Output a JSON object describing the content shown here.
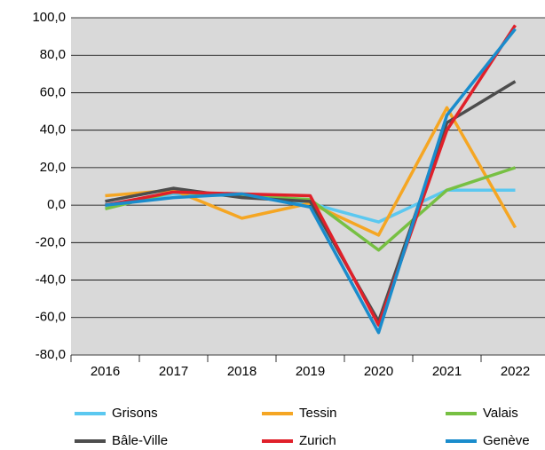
{
  "chart_data": {
    "type": "line",
    "categories": [
      "2016",
      "2017",
      "2018",
      "2019",
      "2020",
      "2021",
      "2022"
    ],
    "series": [
      {
        "name": "Grisons",
        "color": "#5bc8f0",
        "values": [
          -1,
          6,
          5,
          1,
          -9,
          8,
          8
        ]
      },
      {
        "name": "Tessin",
        "color": "#f5a623",
        "values": [
          5,
          8,
          -7,
          1,
          -16,
          52,
          -12
        ]
      },
      {
        "name": "Valais",
        "color": "#77c043",
        "values": [
          -2,
          7,
          5,
          3,
          -24,
          8,
          20
        ]
      },
      {
        "name": "Bâle-Ville",
        "color": "#4d4d4d",
        "values": [
          2,
          9,
          4,
          2,
          -62,
          44,
          66
        ]
      },
      {
        "name": "Zurich",
        "color": "#e0202a",
        "values": [
          0,
          7,
          6,
          5,
          -64,
          40,
          96
        ]
      },
      {
        "name": "Genève",
        "color": "#1a8ccc",
        "values": [
          0,
          4,
          6,
          -1,
          -68,
          48,
          94
        ]
      }
    ],
    "ylim": [
      -80,
      100
    ],
    "yticks": [
      {
        "value": -80,
        "label": "-80,0"
      },
      {
        "value": -60,
        "label": "-60,0"
      },
      {
        "value": -40,
        "label": "-40,0"
      },
      {
        "value": -20,
        "label": "-20,0"
      },
      {
        "value": 0,
        "label": "0,0"
      },
      {
        "value": 20,
        "label": "20,0"
      },
      {
        "value": 40,
        "label": "40,0"
      },
      {
        "value": 60,
        "label": "60,0"
      },
      {
        "value": 80,
        "label": "80,0"
      },
      {
        "value": 100,
        "label": "100,0"
      }
    ],
    "grid": true
  }
}
